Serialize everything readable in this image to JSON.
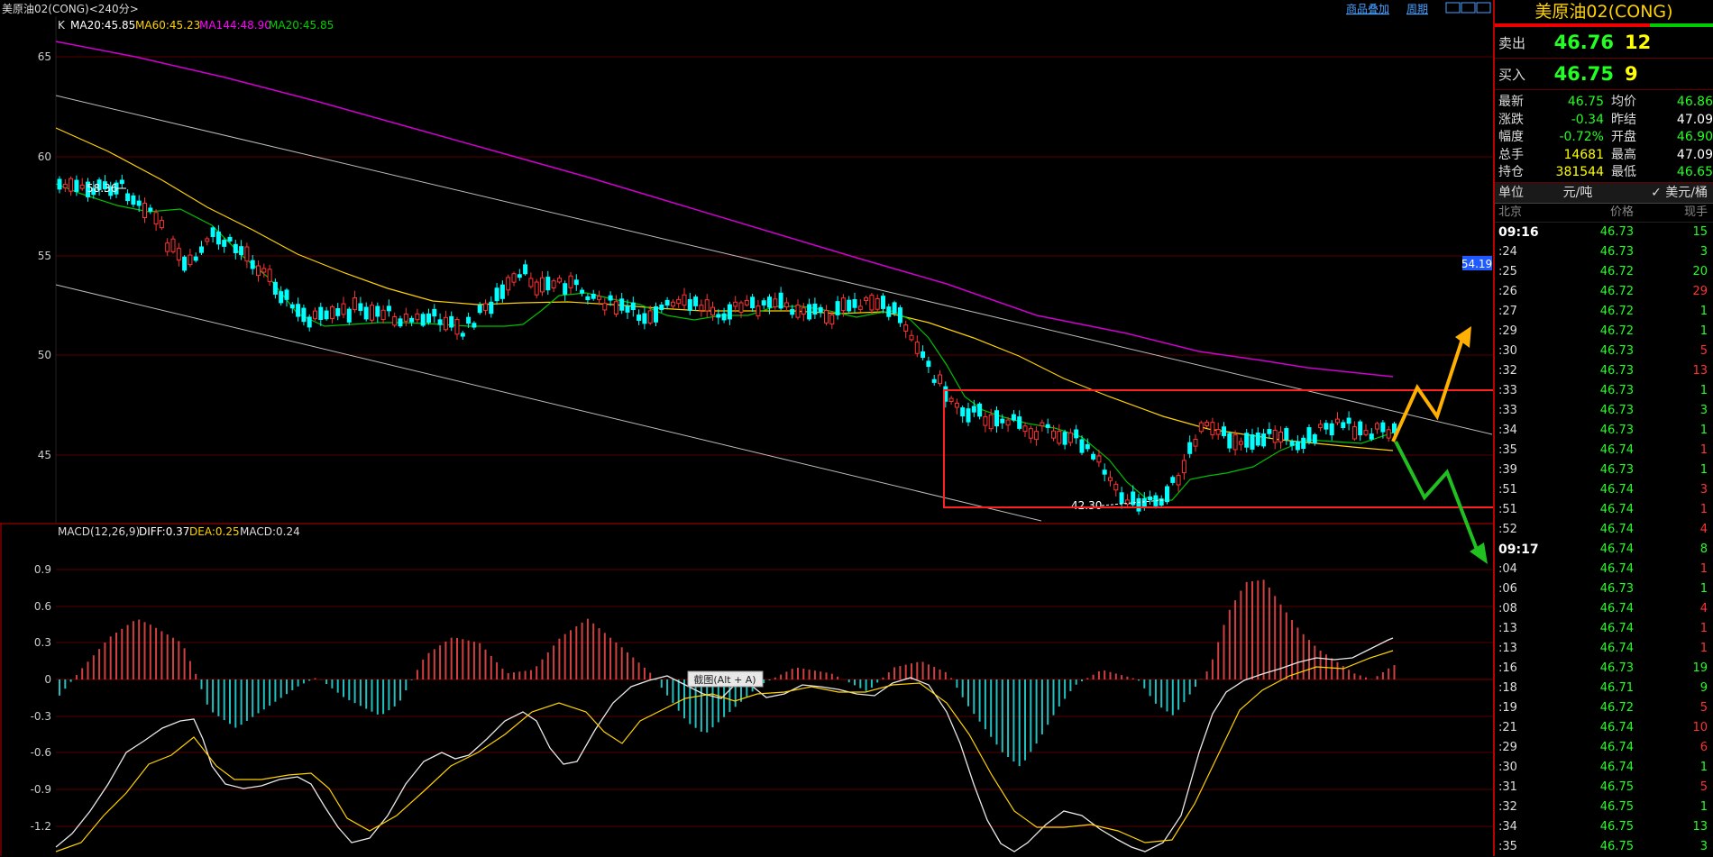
{
  "header": {
    "symbol_title": "美原油02(CONG)<240分>",
    "link_overlay": "商品叠加",
    "link_period": "周期"
  },
  "main_chart": {
    "legend_k": "K",
    "legend_items": [
      {
        "text": "MA20:45.85",
        "color": "#ffffff"
      },
      {
        "text": "MA60:45.23",
        "color": "#ffd200"
      },
      {
        "text": "MA144:48.90",
        "color": "#ff00ff"
      },
      {
        "text": "MA20:45.85",
        "color": "#00d000"
      }
    ],
    "y_labels": [
      "65",
      "60",
      "55",
      "50",
      "45"
    ],
    "high_label": "58.36",
    "low_label": "42.30",
    "price_tag": "54.19"
  },
  "macd_chart": {
    "legend_name": "MACD(12,26,9)",
    "legend_diff": "DIFF:0.37",
    "legend_dea": "DEA:0.25",
    "legend_macd": "MACD:0.24",
    "y_labels": [
      "0.9",
      "0.6",
      "0.3",
      "0",
      "-0.3",
      "-0.6",
      "-0.9",
      "-1.2"
    ],
    "tooltip": "截图(Alt + A)"
  },
  "side_panel": {
    "title": "美原油02(CONG)",
    "ask_label": "卖出",
    "ask_price": "46.76",
    "ask_vol": "12",
    "bid_label": "买入",
    "bid_price": "46.75",
    "bid_vol": "9",
    "stats": [
      {
        "l": "最新",
        "v": "46.75",
        "vc": "green",
        "l2": "均价",
        "v2": "46.86",
        "v2c": "green"
      },
      {
        "l": "涨跌",
        "v": "-0.34",
        "vc": "green",
        "l2": "昨结",
        "v2": "47.09",
        "v2c": "white"
      },
      {
        "l": "幅度",
        "v": "-0.72%",
        "vc": "green",
        "l2": "开盘",
        "v2": "46.90",
        "v2c": "green"
      },
      {
        "l": "总手",
        "v": "14681",
        "vc": "yellow",
        "l2": "最高",
        "v2": "47.09",
        "v2c": "white"
      },
      {
        "l": "持仓",
        "v": "381544",
        "vc": "yellow",
        "l2": "最低",
        "v2": "46.65",
        "v2c": "green"
      }
    ],
    "unit_label": "单位",
    "unit_cny": "元/吨",
    "unit_usd": "✓ 美元/桶",
    "hdr_time": "北京",
    "hdr_price": "价格",
    "hdr_qty": "现手",
    "ticks": [
      {
        "t": "09:16",
        "major": true,
        "p": "46.73",
        "q": "15",
        "qc": "green"
      },
      {
        "t": ":24",
        "p": "46.73",
        "q": "3",
        "qc": "green"
      },
      {
        "t": ":25",
        "p": "46.72",
        "q": "20",
        "qc": "green"
      },
      {
        "t": ":26",
        "p": "46.72",
        "q": "29",
        "qc": "red"
      },
      {
        "t": ":27",
        "p": "46.72",
        "q": "1",
        "qc": "green"
      },
      {
        "t": ":29",
        "p": "46.72",
        "q": "1",
        "qc": "green"
      },
      {
        "t": ":30",
        "p": "46.73",
        "q": "5",
        "qc": "red"
      },
      {
        "t": ":32",
        "p": "46.73",
        "q": "13",
        "qc": "red"
      },
      {
        "t": ":33",
        "p": "46.73",
        "q": "1",
        "qc": "green"
      },
      {
        "t": ":33",
        "p": "46.73",
        "q": "3",
        "qc": "green"
      },
      {
        "t": ":34",
        "p": "46.73",
        "q": "1",
        "qc": "green"
      },
      {
        "t": ":35",
        "p": "46.74",
        "q": "1",
        "qc": "red"
      },
      {
        "t": ":39",
        "p": "46.73",
        "q": "1",
        "qc": "green"
      },
      {
        "t": ":51",
        "p": "46.74",
        "q": "3",
        "qc": "red"
      },
      {
        "t": ":51",
        "p": "46.74",
        "q": "1",
        "qc": "red"
      },
      {
        "t": ":52",
        "p": "46.74",
        "q": "4",
        "qc": "red"
      },
      {
        "t": "09:17",
        "major": true,
        "p": "46.74",
        "q": "8",
        "qc": "green"
      },
      {
        "t": ":04",
        "p": "46.74",
        "q": "1",
        "qc": "red"
      },
      {
        "t": ":06",
        "p": "46.73",
        "q": "1",
        "qc": "green"
      },
      {
        "t": ":08",
        "p": "46.74",
        "q": "4",
        "qc": "red"
      },
      {
        "t": ":13",
        "p": "46.74",
        "q": "1",
        "qc": "red"
      },
      {
        "t": ":13",
        "p": "46.74",
        "q": "1",
        "qc": "red"
      },
      {
        "t": ":16",
        "p": "46.73",
        "q": "19",
        "qc": "green"
      },
      {
        "t": ":18",
        "p": "46.71",
        "q": "9",
        "qc": "green"
      },
      {
        "t": ":19",
        "p": "46.72",
        "q": "5",
        "qc": "red"
      },
      {
        "t": ":21",
        "p": "46.74",
        "q": "10",
        "qc": "red"
      },
      {
        "t": ":29",
        "p": "46.74",
        "q": "6",
        "qc": "red"
      },
      {
        "t": ":30",
        "p": "46.74",
        "q": "1",
        "qc": "green"
      },
      {
        "t": ":31",
        "p": "46.75",
        "q": "5",
        "qc": "red"
      },
      {
        "t": ":32",
        "p": "46.75",
        "q": "1",
        "qc": "green"
      },
      {
        "t": ":34",
        "p": "46.75",
        "q": "13",
        "qc": "green"
      },
      {
        "t": ":35",
        "p": "46.75",
        "q": "3",
        "qc": "green"
      }
    ]
  },
  "colors": {
    "up": "#ff3333",
    "down": "#00ffff",
    "grid": "#5a0000",
    "ma_yellow": "#ffd200",
    "ma_magenta": "#d000d0",
    "ma_green": "#00c000",
    "macd_up": "#d04040",
    "macd_down": "#20c0c0",
    "annotation_box": "#ff2020",
    "arrow_up": "#ffb000",
    "arrow_down": "#20c020"
  }
}
